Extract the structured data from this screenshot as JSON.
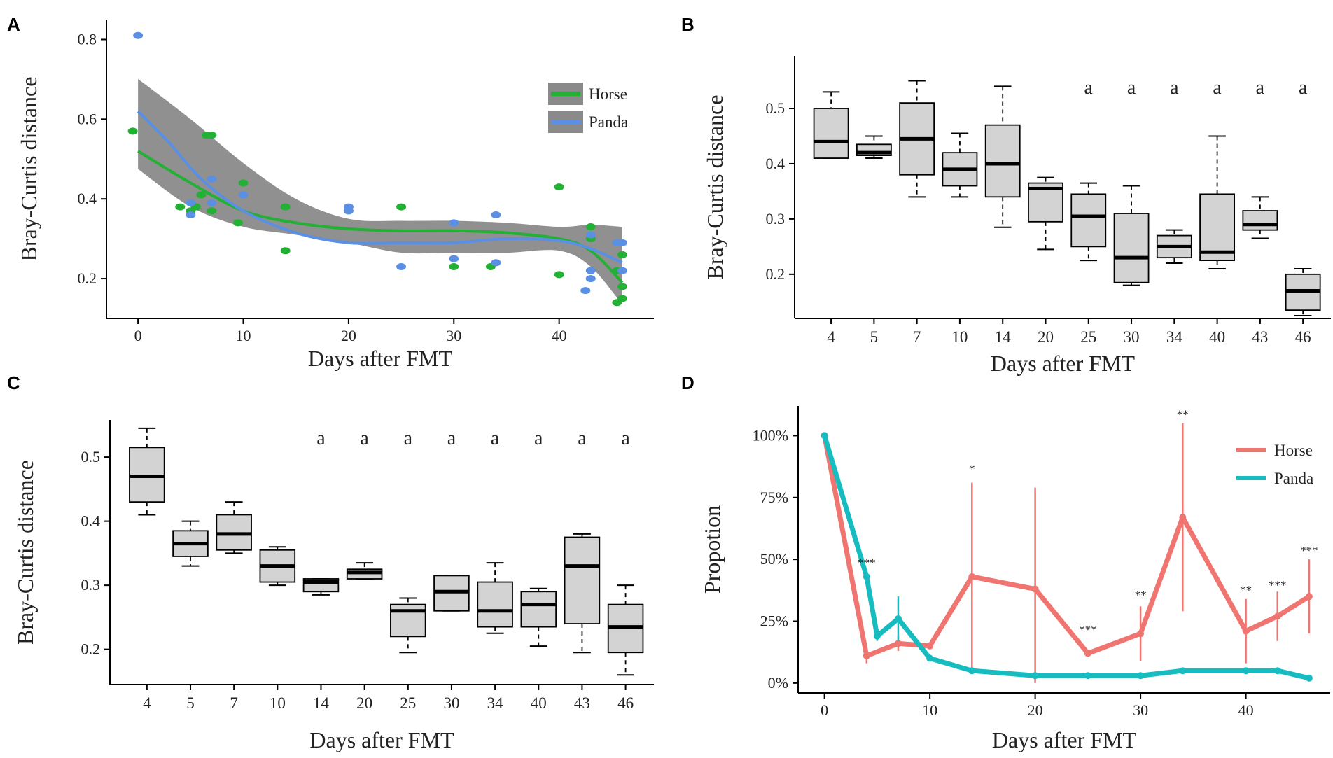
{
  "colors": {
    "horse": "#22b035",
    "panda": "#5b8fe3",
    "horse_d": "#f07470",
    "panda_d": "#16bcbf",
    "band": "#8a8a8a",
    "box_fill": "#d3d3d3"
  },
  "chart_data": [
    {
      "panel": "A",
      "type": "scatter",
      "xlabel": "Days after FMT",
      "ylabel": "Bray-Curtis distance",
      "xlim": [
        -3,
        49
      ],
      "ylim": [
        0.1,
        0.85
      ],
      "xticks": [
        0,
        10,
        20,
        30,
        40
      ],
      "yticks": [
        0.2,
        0.4,
        0.6,
        0.8
      ],
      "legend": [
        "Horse",
        "Panda"
      ],
      "series": [
        {
          "name": "Horse",
          "points": [
            [
              -0.5,
              0.57
            ],
            [
              4,
              0.38
            ],
            [
              5,
              0.37
            ],
            [
              5.5,
              0.38
            ],
            [
              6,
              0.41
            ],
            [
              6.5,
              0.56
            ],
            [
              7,
              0.56
            ],
            [
              7,
              0.37
            ],
            [
              9.5,
              0.34
            ],
            [
              10,
              0.44
            ],
            [
              14,
              0.38
            ],
            [
              14,
              0.27
            ],
            [
              20,
              0.37
            ],
            [
              25,
              0.38
            ],
            [
              30,
              0.23
            ],
            [
              33.5,
              0.23
            ],
            [
              40,
              0.43
            ],
            [
              40,
              0.21
            ],
            [
              43,
              0.3
            ],
            [
              43,
              0.33
            ],
            [
              45.5,
              0.22
            ],
            [
              46,
              0.18
            ],
            [
              46,
              0.26
            ],
            [
              46,
              0.15
            ],
            [
              45.5,
              0.14
            ]
          ],
          "smooth": [
            [
              0,
              0.52
            ],
            [
              5,
              0.44
            ],
            [
              10,
              0.37
            ],
            [
              15,
              0.34
            ],
            [
              20,
              0.325
            ],
            [
              25,
              0.32
            ],
            [
              30,
              0.32
            ],
            [
              35,
              0.315
            ],
            [
              40,
              0.3
            ],
            [
              43,
              0.27
            ],
            [
              46,
              0.19
            ]
          ]
        },
        {
          "name": "Panda",
          "points": [
            [
              0,
              0.81
            ],
            [
              5,
              0.36
            ],
            [
              5,
              0.39
            ],
            [
              7,
              0.45
            ],
            [
              7,
              0.39
            ],
            [
              10,
              0.41
            ],
            [
              20,
              0.38
            ],
            [
              20,
              0.37
            ],
            [
              25,
              0.23
            ],
            [
              30,
              0.34
            ],
            [
              30,
              0.25
            ],
            [
              34,
              0.36
            ],
            [
              34,
              0.24
            ],
            [
              43,
              0.31
            ],
            [
              43,
              0.2
            ],
            [
              43,
              0.22
            ],
            [
              42.5,
              0.17
            ],
            [
              46,
              0.29
            ],
            [
              45.5,
              0.29
            ],
            [
              46,
              0.22
            ]
          ],
          "smooth": [
            [
              0,
              0.62
            ],
            [
              3,
              0.54
            ],
            [
              6,
              0.45
            ],
            [
              10,
              0.37
            ],
            [
              15,
              0.315
            ],
            [
              20,
              0.29
            ],
            [
              25,
              0.29
            ],
            [
              30,
              0.29
            ],
            [
              35,
              0.3
            ],
            [
              40,
              0.295
            ],
            [
              43,
              0.275
            ],
            [
              46,
              0.24
            ]
          ]
        }
      ]
    },
    {
      "panel": "B",
      "type": "box",
      "xlabel": "Days after FMT",
      "ylabel": "Bray-Curtis distance",
      "categories": [
        "4",
        "5",
        "7",
        "10",
        "14",
        "20",
        "25",
        "30",
        "34",
        "40",
        "43",
        "46"
      ],
      "ylim": [
        0.12,
        0.595
      ],
      "yticks": [
        0.2,
        0.3,
        0.4,
        0.5
      ],
      "boxes": [
        {
          "min": 0.41,
          "q1": 0.41,
          "median": 0.44,
          "q3": 0.5,
          "max": 0.53
        },
        {
          "min": 0.41,
          "q1": 0.415,
          "median": 0.42,
          "q3": 0.435,
          "max": 0.45
        },
        {
          "min": 0.34,
          "q1": 0.38,
          "median": 0.445,
          "q3": 0.51,
          "max": 0.55
        },
        {
          "min": 0.34,
          "q1": 0.36,
          "median": 0.39,
          "q3": 0.42,
          "max": 0.455
        },
        {
          "min": 0.285,
          "q1": 0.34,
          "median": 0.4,
          "q3": 0.47,
          "max": 0.54
        },
        {
          "min": 0.245,
          "q1": 0.295,
          "median": 0.355,
          "q3": 0.365,
          "max": 0.375
        },
        {
          "min": 0.225,
          "q1": 0.25,
          "median": 0.305,
          "q3": 0.345,
          "max": 0.365
        },
        {
          "min": 0.18,
          "q1": 0.185,
          "median": 0.23,
          "q3": 0.31,
          "max": 0.36
        },
        {
          "min": 0.22,
          "q1": 0.23,
          "median": 0.25,
          "q3": 0.27,
          "max": 0.28
        },
        {
          "min": 0.21,
          "q1": 0.225,
          "median": 0.24,
          "q3": 0.345,
          "max": 0.45
        },
        {
          "min": 0.265,
          "q1": 0.28,
          "median": 0.29,
          "q3": 0.315,
          "max": 0.34
        },
        {
          "min": 0.125,
          "q1": 0.135,
          "median": 0.17,
          "q3": 0.2,
          "max": 0.21
        }
      ],
      "annotations": [
        "",
        "",
        "",
        "",
        "",
        "",
        "a",
        "a",
        "a",
        "a",
        "a",
        "a"
      ]
    },
    {
      "panel": "C",
      "type": "box",
      "xlabel": "Days after FMT",
      "ylabel": "Bray-Curtis distance",
      "categories": [
        "4",
        "5",
        "7",
        "10",
        "14",
        "20",
        "25",
        "30",
        "34",
        "40",
        "43",
        "46"
      ],
      "ylim": [
        0.145,
        0.558
      ],
      "yticks": [
        0.2,
        0.3,
        0.4,
        0.5
      ],
      "boxes": [
        {
          "min": 0.41,
          "q1": 0.43,
          "median": 0.47,
          "q3": 0.515,
          "max": 0.545
        },
        {
          "min": 0.33,
          "q1": 0.345,
          "median": 0.365,
          "q3": 0.385,
          "max": 0.4
        },
        {
          "min": 0.35,
          "q1": 0.355,
          "median": 0.38,
          "q3": 0.41,
          "max": 0.43
        },
        {
          "min": 0.3,
          "q1": 0.305,
          "median": 0.33,
          "q3": 0.355,
          "max": 0.36
        },
        {
          "min": 0.285,
          "q1": 0.29,
          "median": 0.305,
          "q3": 0.31,
          "max": 0.31
        },
        {
          "min": 0.31,
          "q1": 0.31,
          "median": 0.32,
          "q3": 0.325,
          "max": 0.335
        },
        {
          "min": 0.195,
          "q1": 0.22,
          "median": 0.26,
          "q3": 0.27,
          "max": 0.28
        },
        {
          "min": 0.26,
          "q1": 0.26,
          "median": 0.29,
          "q3": 0.315,
          "max": 0.315
        },
        {
          "min": 0.225,
          "q1": 0.235,
          "median": 0.26,
          "q3": 0.305,
          "max": 0.335
        },
        {
          "min": 0.205,
          "q1": 0.235,
          "median": 0.27,
          "q3": 0.29,
          "max": 0.295
        },
        {
          "min": 0.195,
          "q1": 0.24,
          "median": 0.33,
          "q3": 0.375,
          "max": 0.38
        },
        {
          "min": 0.16,
          "q1": 0.195,
          "median": 0.235,
          "q3": 0.27,
          "max": 0.3
        }
      ],
      "annotations": [
        "",
        "",
        "",
        "",
        "a",
        "a",
        "a",
        "a",
        "a",
        "a",
        "a",
        "a"
      ]
    },
    {
      "panel": "D",
      "type": "line",
      "xlabel": "Days after FMT",
      "ylabel": "Propotion",
      "xlim": [
        -2.5,
        48
      ],
      "ylim": [
        -4,
        112
      ],
      "xticks": [
        0,
        10,
        20,
        30,
        40
      ],
      "yticks": [
        0,
        25,
        50,
        75,
        100
      ],
      "ytick_labels": [
        "0%",
        "25%",
        "50%",
        "75%",
        "100%"
      ],
      "legend": [
        "Horse",
        "Panda"
      ],
      "series": [
        {
          "name": "Horse",
          "points": [
            [
              0,
              100
            ],
            [
              4,
              11
            ],
            [
              7,
              16
            ],
            [
              10,
              15
            ],
            [
              14,
              43
            ],
            [
              20,
              38
            ],
            [
              25,
              12
            ],
            [
              30,
              20
            ],
            [
              34,
              67
            ],
            [
              40,
              21
            ],
            [
              43,
              27
            ],
            [
              46,
              35
            ]
          ],
          "errors": [
            [
              0,
              0
            ],
            [
              4,
              3
            ],
            [
              7,
              3
            ],
            [
              10,
              1
            ],
            [
              14,
              38
            ],
            [
              20,
              41
            ],
            [
              25,
              1
            ],
            [
              30,
              11
            ],
            [
              34,
              38
            ],
            [
              40,
              13
            ],
            [
              43,
              10
            ],
            [
              46,
              15
            ]
          ]
        },
        {
          "name": "Panda",
          "points": [
            [
              0,
              100
            ],
            [
              4,
              43
            ],
            [
              5,
              19
            ],
            [
              7,
              26
            ],
            [
              10,
              10
            ],
            [
              14,
              5
            ],
            [
              20,
              3
            ],
            [
              25,
              3
            ],
            [
              30,
              3
            ],
            [
              34,
              5
            ],
            [
              40,
              5
            ],
            [
              43,
              5
            ],
            [
              46,
              2
            ]
          ],
          "errors": [
            [
              0,
              0
            ],
            [
              4,
              3
            ],
            [
              5,
              2
            ],
            [
              7,
              9
            ],
            [
              10,
              1
            ],
            [
              14,
              1
            ],
            [
              20,
              1
            ],
            [
              25,
              1
            ],
            [
              30,
              1
            ],
            [
              34,
              1
            ],
            [
              40,
              1
            ],
            [
              43,
              1
            ],
            [
              46,
              1
            ]
          ]
        }
      ],
      "significance": [
        {
          "x": 4,
          "y": 47,
          "label": "***"
        },
        {
          "x": 14,
          "y": 85,
          "label": "*"
        },
        {
          "x": 25,
          "y": 20,
          "label": "***"
        },
        {
          "x": 30,
          "y": 34,
          "label": "**"
        },
        {
          "x": 34,
          "y": 107,
          "label": "**"
        },
        {
          "x": 40,
          "y": 36,
          "label": "**"
        },
        {
          "x": 43,
          "y": 38,
          "label": "***"
        },
        {
          "x": 46,
          "y": 52,
          "label": "***"
        }
      ]
    }
  ]
}
